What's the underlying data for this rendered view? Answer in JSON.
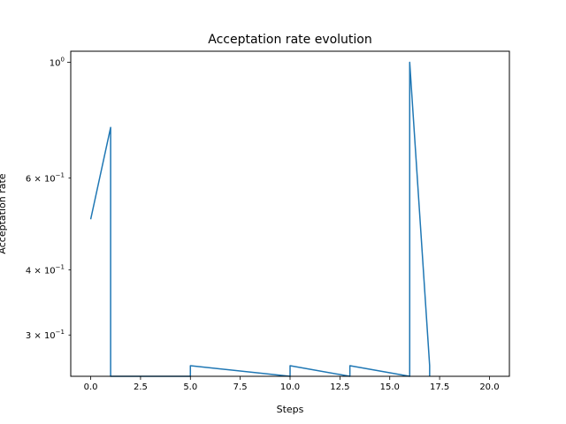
{
  "chart_data": {
    "type": "line",
    "title": "Acceptation rate evolution",
    "xlabel": "Steps",
    "ylabel": "Acceptation rate",
    "xlim": [
      -1,
      21
    ],
    "ylim": [
      0.25,
      1.05
    ],
    "yscale": "log",
    "grid": false,
    "xticks": [
      0,
      2.5,
      5,
      7.5,
      10,
      12.5,
      15,
      17.5,
      20
    ],
    "xtick_labels": [
      "0.0",
      "2.5",
      "5.0",
      "7.5",
      "10.0",
      "12.5",
      "15.0",
      "17.5",
      "20.0"
    ],
    "yticks": [
      {
        "value": 1.0,
        "base": "10",
        "exp": "0",
        "mant": ""
      },
      {
        "value": 0.6,
        "base": "10",
        "exp": "−1",
        "mant": "6 × "
      },
      {
        "value": 0.4,
        "base": "10",
        "exp": "−1",
        "mant": "4 × "
      },
      {
        "value": 0.3,
        "base": "10",
        "exp": "−1",
        "mant": "3 × "
      }
    ],
    "series": [
      {
        "color": "#1f77b4",
        "x": [
          0,
          1,
          1,
          5,
          5,
          10,
          10,
          13,
          13,
          16,
          16,
          17,
          17
        ],
        "y": [
          0.5,
          0.75,
          0.25,
          0.25,
          0.262,
          0.25,
          0.262,
          0.25,
          0.262,
          0.25,
          1.0,
          0.262,
          0.25
        ]
      }
    ]
  }
}
